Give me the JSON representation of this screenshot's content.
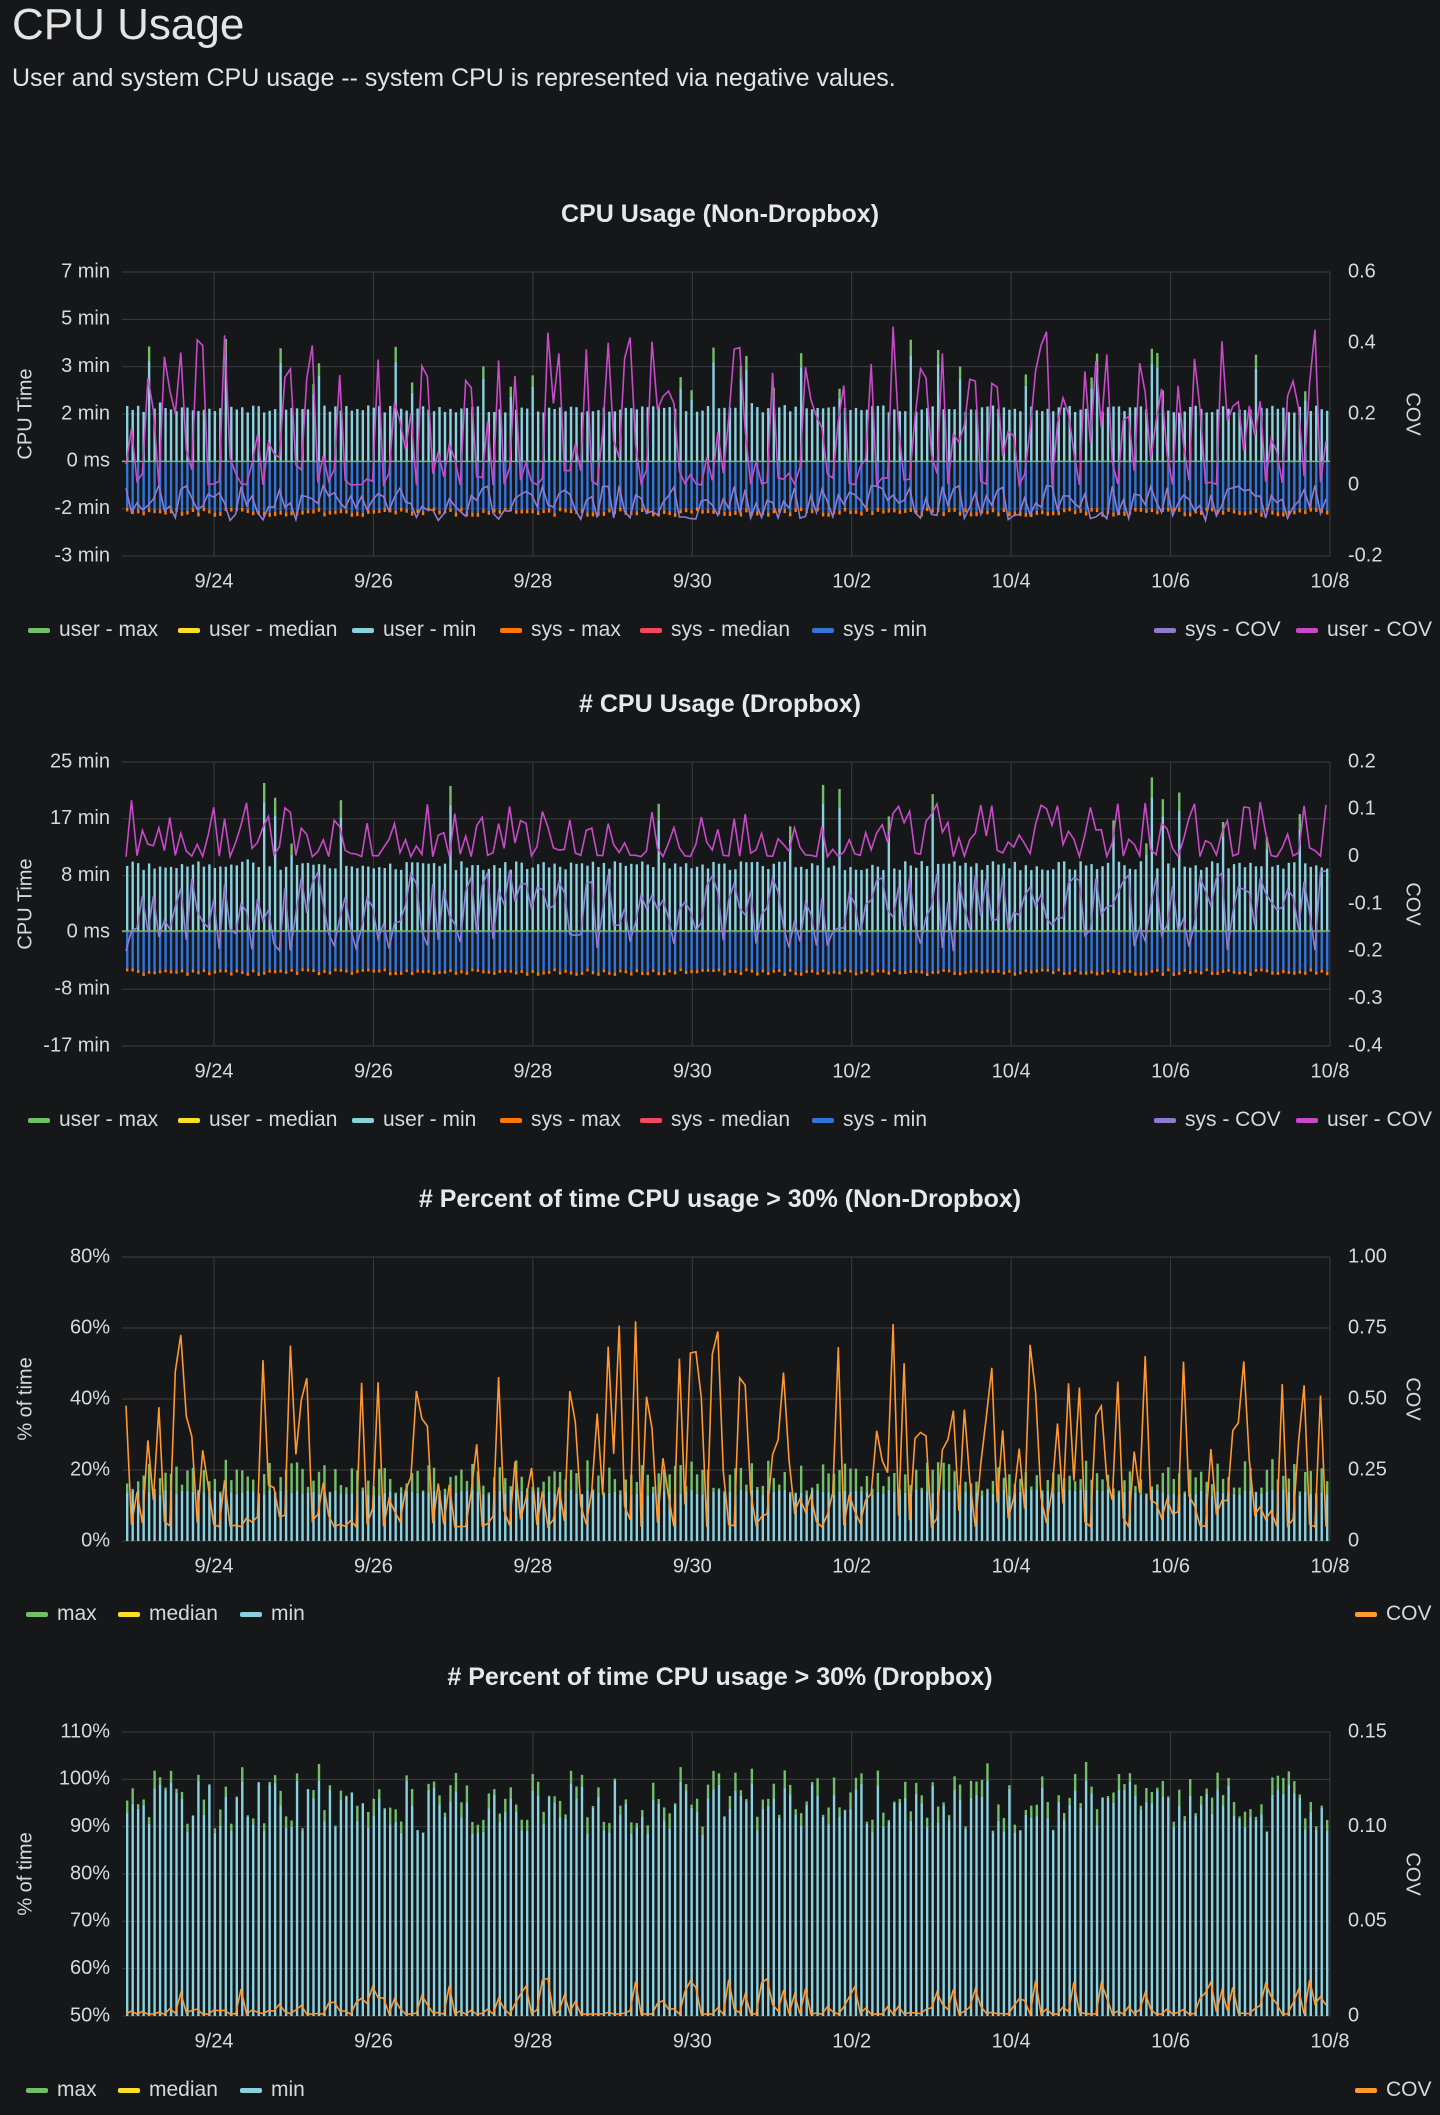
{
  "page": {
    "title": "CPU Usage",
    "description": "User and system CPU usage -- system CPU is represented via negative values."
  },
  "colors": {
    "background": "#161719",
    "grid": "#3a3c40",
    "text": "#d8d9da",
    "user_max": "#73bf69",
    "user_median": "#fade2a",
    "user_min": "#8ad1e0",
    "sys_max": "#ff780a",
    "sys_median": "#f2495c",
    "sys_min": "#3274d9",
    "sys_cov": "#8f7ad1",
    "user_cov": "#c84ac8",
    "cov_orange": "#ff9830"
  },
  "chart_data": [
    {
      "type": "bar",
      "title": "CPU Usage (Non-Dropbox)",
      "ylabel": "CPU Time",
      "y2label": "COV",
      "x_range": [
        "9/23",
        "10/8"
      ],
      "x_ticks": [
        "9/24",
        "9/26",
        "9/28",
        "9/30",
        "10/2",
        "10/4",
        "10/6",
        "10/8"
      ],
      "y_ticks": [
        "7 min",
        "5 min",
        "3 min",
        "2 min",
        "0 ms",
        "-2 min",
        "-3 min"
      ],
      "y2_ticks": [
        "0.6",
        "0.4",
        "0.2",
        "0",
        "-0.2"
      ],
      "ylim_minutes": [
        -3.5,
        7
      ],
      "y2lim": [
        -0.2,
        0.6
      ],
      "legend_left": [
        "user - max",
        "user - median",
        "user - min",
        "sys - max",
        "sys - median",
        "sys - min"
      ],
      "legend_right": [
        "sys - COV",
        "user - COV"
      ],
      "typical_values": {
        "user_bar_minutes": 1.8,
        "sys_bar_minutes": -1.7,
        "user_cov_range": [
          0.0,
          0.45
        ],
        "sys_cov_range": [
          -0.1,
          0.0
        ]
      }
    },
    {
      "type": "bar",
      "title": "# CPU Usage (Dropbox)",
      "ylabel": "CPU Time",
      "y2label": "COV",
      "x_range": [
        "9/23",
        "10/8"
      ],
      "x_ticks": [
        "9/24",
        "9/26",
        "9/28",
        "9/30",
        "10/2",
        "10/4",
        "10/6",
        "10/8"
      ],
      "y_ticks": [
        "25 min",
        "17 min",
        "8 min",
        "0 ms",
        "-8 min",
        "-17 min"
      ],
      "y2_ticks": [
        "0.2",
        "0.1",
        "0",
        "-0.1",
        "-0.2",
        "-0.3",
        "-0.4"
      ],
      "ylim_minutes": [
        -17,
        25
      ],
      "y2lim": [
        -0.4,
        0.2
      ],
      "legend_left": [
        "user - max",
        "user - median",
        "user - min",
        "sys - max",
        "sys - median",
        "sys - min"
      ],
      "legend_right": [
        "sys - COV",
        "user - COV"
      ],
      "typical_values": {
        "user_bar_minutes": 9,
        "sys_bar_minutes": -5.5,
        "user_cov_range": [
          0.0,
          0.12
        ],
        "sys_cov_range": [
          -0.2,
          -0.03
        ]
      }
    },
    {
      "type": "bar",
      "title": "# Percent of time CPU usage > 30% (Non-Dropbox)",
      "ylabel": "% of time",
      "y2label": "COV",
      "x_range": [
        "9/23",
        "10/8"
      ],
      "x_ticks": [
        "9/24",
        "9/26",
        "9/28",
        "9/30",
        "10/2",
        "10/4",
        "10/6",
        "10/8"
      ],
      "y_ticks": [
        "80%",
        "60%",
        "40%",
        "20%",
        "0%"
      ],
      "y2_ticks": [
        "1.00",
        "0.75",
        "0.50",
        "0.25",
        "0"
      ],
      "ylim": [
        0,
        80
      ],
      "y2lim": [
        0,
        1
      ],
      "legend_left": [
        "max",
        "median",
        "min"
      ],
      "legend_right": [
        "COV"
      ],
      "typical_values": {
        "bar_percent": 14,
        "cov_range": [
          0.05,
          0.78
        ]
      }
    },
    {
      "type": "bar",
      "title": "# Percent of time CPU usage > 30% (Dropbox)",
      "ylabel": "% of time",
      "y2label": "COV",
      "x_range": [
        "9/23",
        "10/8"
      ],
      "x_ticks": [
        "9/24",
        "9/26",
        "9/28",
        "9/30",
        "10/2",
        "10/4",
        "10/6",
        "10/8"
      ],
      "y_ticks": [
        "110%",
        "100%",
        "90%",
        "80%",
        "70%",
        "60%",
        "50%"
      ],
      "y2_ticks": [
        "0.15",
        "0.10",
        "0.05",
        "0"
      ],
      "ylim": [
        50,
        110
      ],
      "y2lim": [
        0,
        0.15
      ],
      "legend_left": [
        "max",
        "median",
        "min"
      ],
      "legend_right": [
        "COV"
      ],
      "typical_values": {
        "bar_percent": 96,
        "cov_range": [
          0.001,
          0.02
        ]
      }
    }
  ]
}
